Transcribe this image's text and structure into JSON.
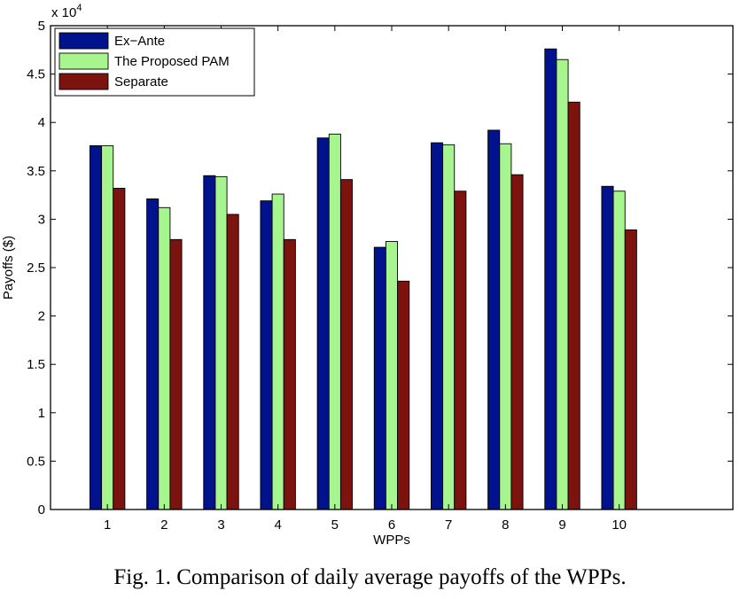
{
  "chart_data": {
    "type": "bar",
    "categories": [
      "1",
      "2",
      "3",
      "4",
      "5",
      "6",
      "7",
      "8",
      "9",
      "10"
    ],
    "series": [
      {
        "name": "Ex−Ante",
        "color": "#00128c",
        "values": [
          37600,
          32100,
          34500,
          31900,
          38400,
          27100,
          37900,
          39200,
          47600,
          33400
        ]
      },
      {
        "name": "The Proposed PAM",
        "color": "#a6f58f",
        "values": [
          37600,
          31200,
          34400,
          32600,
          38800,
          27700,
          37700,
          37800,
          46500,
          32900
        ]
      },
      {
        "name": "Separate",
        "color": "#7c130e",
        "values": [
          33200,
          27900,
          30500,
          27900,
          34100,
          23600,
          32900,
          34600,
          42100,
          28900
        ]
      }
    ],
    "xlabel": "WPPs",
    "ylabel": "Payoffs ($)",
    "ylim": [
      0,
      50000
    ],
    "xlim": [
      0,
      12
    ],
    "y_ticks": [
      "0",
      "0.5",
      "1",
      "1.5",
      "2",
      "2.5",
      "3",
      "3.5",
      "4",
      "4.5",
      "5"
    ],
    "y_tick_values": [
      0,
      5000,
      10000,
      15000,
      20000,
      25000,
      30000,
      35000,
      40000,
      45000,
      50000
    ],
    "y_exponent": "x 10",
    "y_exponent_power": "4",
    "legend_position": "top-left",
    "grid": false
  },
  "caption": "Fig. 1. Comparison of daily average payoffs of the WPPs."
}
